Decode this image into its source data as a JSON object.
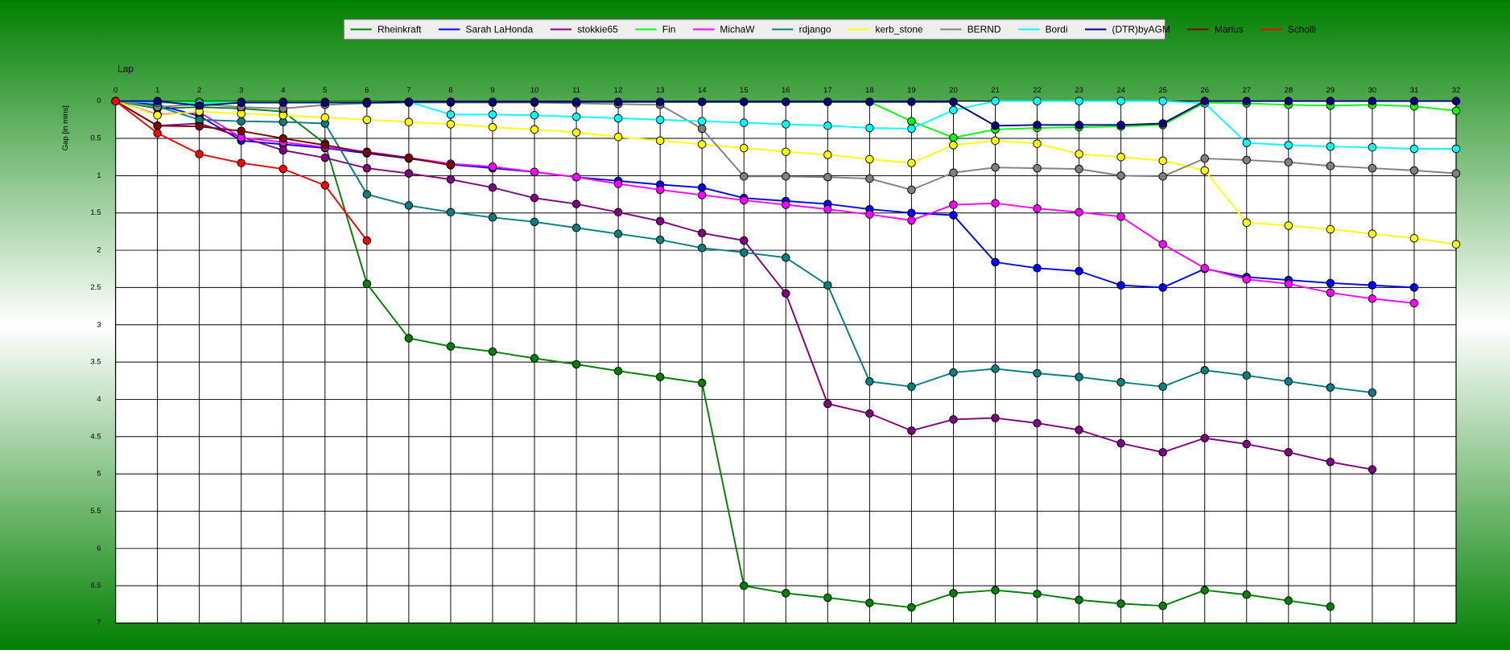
{
  "chart_data": {
    "type": "line",
    "x_label": "Lap",
    "y_label": "Gap [in mins]",
    "x": [
      0,
      1,
      2,
      3,
      4,
      5,
      6,
      7,
      8,
      9,
      10,
      11,
      12,
      13,
      14,
      15,
      16,
      17,
      18,
      19,
      20,
      21,
      22,
      23,
      24,
      25,
      26,
      27,
      28,
      29,
      30,
      31,
      32
    ],
    "xlim": [
      0,
      32
    ],
    "xticks": [
      0,
      1,
      2,
      3,
      4,
      5,
      6,
      7,
      8,
      9,
      10,
      11,
      12,
      13,
      14,
      15,
      16,
      17,
      18,
      19,
      20,
      21,
      22,
      23,
      24,
      25,
      26,
      27,
      28,
      29,
      30,
      31,
      32
    ],
    "ylim": [
      0,
      7
    ],
    "yticks": [
      0,
      0.5,
      1,
      1.5,
      2,
      2.5,
      3,
      3.5,
      4,
      4.5,
      5,
      5.5,
      6,
      6.5,
      7
    ],
    "y_inverted": true,
    "grid": true,
    "legend": "top",
    "series": [
      {
        "name": "Rheinkraft",
        "color": "#008000",
        "values": [
          0,
          0.1,
          0.08,
          0.1,
          0.14,
          0.57,
          2.45,
          3.18,
          3.29,
          3.36,
          3.45,
          3.53,
          3.62,
          3.7,
          3.78,
          6.5,
          6.6,
          6.66,
          6.73,
          6.79,
          6.6,
          6.56,
          6.61,
          6.69,
          6.74,
          6.77,
          6.56,
          6.62,
          6.7,
          6.78,
          null,
          null,
          null
        ]
      },
      {
        "name": "Sarah LaHonda",
        "color": "#0000ff",
        "values": [
          0,
          0.05,
          0.2,
          0.53,
          0.58,
          0.63,
          0.7,
          0.77,
          0.85,
          0.9,
          0.95,
          1.02,
          1.07,
          1.12,
          1.16,
          1.3,
          1.34,
          1.38,
          1.45,
          1.5,
          1.53,
          2.16,
          2.24,
          2.28,
          2.47,
          2.5,
          2.25,
          2.36,
          2.4,
          2.44,
          2.47,
          2.5,
          null
        ]
      },
      {
        "name": "stokkie65",
        "color": "#800080",
        "values": [
          0,
          0.33,
          0.3,
          0.48,
          0.66,
          0.76,
          0.9,
          0.97,
          1.05,
          1.16,
          1.3,
          1.38,
          1.49,
          1.61,
          1.77,
          1.87,
          2.58,
          4.06,
          4.19,
          4.42,
          4.27,
          4.25,
          4.32,
          4.41,
          4.59,
          4.71,
          4.52,
          4.6,
          4.71,
          4.84,
          4.94,
          null,
          null
        ]
      },
      {
        "name": "Fin",
        "color": "#00ff00",
        "values": [
          0,
          0.01,
          0.01,
          0.01,
          0.01,
          0.01,
          0.01,
          0.01,
          0.01,
          0.01,
          0.01,
          0.01,
          0.01,
          0.01,
          0.01,
          0.01,
          0.01,
          0.01,
          0.01,
          0.27,
          0.49,
          0.38,
          0.36,
          0.35,
          0.34,
          0.32,
          0.02,
          0.03,
          0.05,
          0.06,
          0.05,
          0.07,
          0.13
        ]
      },
      {
        "name": "MichaW",
        "color": "#ff00ff",
        "values": [
          0,
          0.18,
          0.15,
          0.49,
          0.55,
          0.62,
          0.68,
          0.76,
          0.84,
          0.88,
          0.95,
          1.02,
          1.11,
          1.19,
          1.26,
          1.33,
          1.39,
          1.45,
          1.52,
          1.6,
          1.39,
          1.37,
          1.44,
          1.49,
          1.55,
          1.92,
          2.24,
          2.39,
          2.45,
          2.57,
          2.65,
          2.71,
          null
        ]
      },
      {
        "name": "rdjango",
        "color": "#008080",
        "values": [
          0,
          0.07,
          0.25,
          0.27,
          0.28,
          0.3,
          1.25,
          1.4,
          1.49,
          1.56,
          1.62,
          1.7,
          1.78,
          1.86,
          1.97,
          2.03,
          2.1,
          2.47,
          3.76,
          3.83,
          3.64,
          3.59,
          3.65,
          3.7,
          3.77,
          3.83,
          3.61,
          3.68,
          3.76,
          3.84,
          3.91,
          null,
          null
        ]
      },
      {
        "name": "kerb_stone",
        "color": "#ffff00",
        "values": [
          0,
          0.19,
          0.14,
          0.17,
          0.19,
          0.22,
          0.25,
          0.28,
          0.31,
          0.35,
          0.38,
          0.42,
          0.48,
          0.53,
          0.58,
          0.63,
          0.68,
          0.72,
          0.78,
          0.83,
          0.59,
          0.53,
          0.57,
          0.71,
          0.75,
          0.8,
          0.93,
          1.63,
          1.67,
          1.72,
          1.78,
          1.84,
          1.92
        ]
      },
      {
        "name": "BERND",
        "color": "#808080",
        "values": [
          0,
          0.08,
          0.04,
          0.08,
          0.1,
          0.05,
          0.03,
          0.02,
          0.02,
          0.02,
          0.02,
          0.03,
          0.04,
          0.05,
          0.37,
          1.01,
          1.01,
          1.02,
          1.04,
          1.19,
          0.96,
          0.89,
          0.9,
          0.91,
          1,
          1.01,
          0.77,
          0.79,
          0.82,
          0.87,
          0.9,
          0.93,
          0.97
        ]
      },
      {
        "name": "Bordi",
        "color": "#00ffff",
        "values": [
          0,
          0.02,
          0.03,
          0.02,
          0.02,
          0.02,
          0.02,
          0.01,
          0.18,
          0.18,
          0.19,
          0.21,
          0.23,
          0.25,
          0.27,
          0.29,
          0.31,
          0.33,
          0.36,
          0.37,
          0.12,
          0,
          0,
          0,
          0,
          0,
          0.03,
          0.56,
          0.59,
          0.61,
          0.62,
          0.64,
          0.64
        ]
      },
      {
        "name": "(DTR)byAGM",
        "color": "#000080",
        "values": [
          0,
          0,
          0.06,
          0.02,
          0.02,
          0.02,
          0.02,
          0.01,
          0.01,
          0.01,
          0.01,
          0.01,
          0.01,
          0.01,
          0.01,
          0.01,
          0.01,
          0.01,
          0.01,
          0.01,
          0.01,
          0.33,
          0.32,
          0.32,
          0.32,
          0.3,
          0,
          0,
          0,
          0,
          0,
          0,
          0
        ]
      },
      {
        "name": "Marius",
        "color": "#800000",
        "values": [
          0,
          0.33,
          0.34,
          0.4,
          0.5,
          0.59,
          0.69,
          0.76,
          0.86,
          null,
          null,
          null,
          null,
          null,
          null,
          null,
          null,
          null,
          null,
          null,
          null,
          null,
          null,
          null,
          null,
          null,
          null,
          null,
          null,
          null,
          null,
          null,
          null
        ]
      },
      {
        "name": "Scholli",
        "color": "#ff0000",
        "values": [
          0,
          0.43,
          0.71,
          0.83,
          0.91,
          1.13,
          1.87,
          null,
          null,
          null,
          null,
          null,
          null,
          null,
          null,
          null,
          null,
          null,
          null,
          null,
          null,
          null,
          null,
          null,
          null,
          null,
          null,
          null,
          null,
          null,
          null,
          null,
          null
        ]
      }
    ]
  }
}
